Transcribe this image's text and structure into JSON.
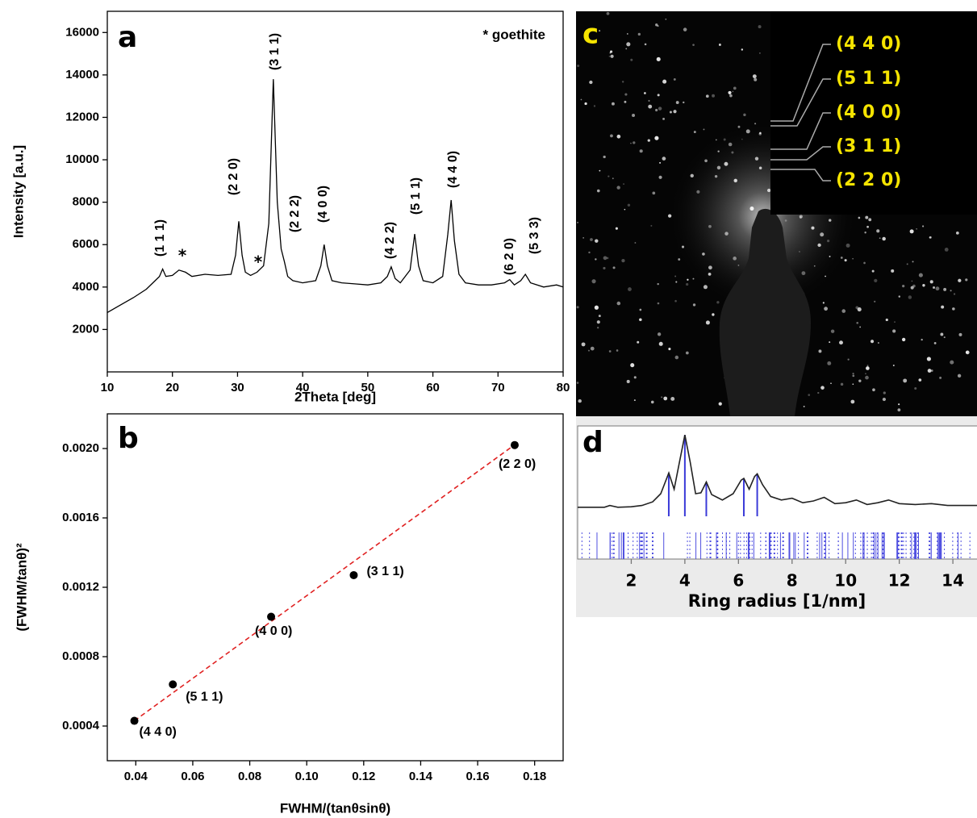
{
  "chart_data": [
    {
      "type": "line",
      "panel_label": "a",
      "x_label": "2Theta [deg]",
      "y_label": "Intensity [a.u.]",
      "xlim": [
        10,
        80
      ],
      "xticks": [
        10,
        20,
        30,
        40,
        50,
        60,
        70,
        80
      ],
      "ylim": [
        0,
        17000
      ],
      "yticks": [
        2000,
        4000,
        6000,
        8000,
        10000,
        12000,
        14000,
        16000
      ],
      "color": "#000000",
      "x": [
        10,
        12,
        14,
        16,
        17,
        18,
        18.5,
        19,
        20,
        21,
        22,
        23,
        25,
        27,
        29,
        29.7,
        30.2,
        30.7,
        31.2,
        32,
        33,
        34,
        34.8,
        35.5,
        36.1,
        36.7,
        37.2,
        37.7,
        38.5,
        40,
        42,
        42.8,
        43.3,
        43.8,
        44.5,
        46,
        48,
        50,
        52,
        53,
        53.6,
        54.2,
        55,
        56.5,
        57.2,
        57.8,
        58.5,
        60,
        61.5,
        62.3,
        62.8,
        63.3,
        64,
        65,
        67,
        69,
        71,
        71.8,
        72.5,
        73.5,
        74.2,
        75,
        77,
        79,
        80
      ],
      "values": [
        2800,
        3150,
        3500,
        3900,
        4200,
        4500,
        4850,
        4500,
        4550,
        4800,
        4700,
        4500,
        4600,
        4550,
        4600,
        5500,
        7100,
        5500,
        4700,
        4550,
        4700,
        5000,
        7000,
        13800,
        8000,
        5800,
        5200,
        4500,
        4300,
        4200,
        4300,
        5000,
        6000,
        5000,
        4300,
        4200,
        4150,
        4100,
        4200,
        4500,
        4950,
        4400,
        4200,
        4800,
        6500,
        5000,
        4300,
        4200,
        4500,
        6500,
        8100,
        6200,
        4600,
        4200,
        4100,
        4100,
        4200,
        4350,
        4100,
        4300,
        4600,
        4200,
        4000,
        4100,
        4000
      ],
      "peak_labels": [
        "(1 1 1)",
        "(2 2 0)",
        "(3 1 1)",
        "(2 2 2)",
        "(4 0 0)",
        "(4 2 2)",
        "(5 1 1)",
        "(4 4 0)",
        "(6 2 0)",
        "(5 3 3)"
      ],
      "impurity_marks": [
        "*",
        "*"
      ],
      "note": "* goethite"
    },
    {
      "type": "scatter",
      "panel_label": "b",
      "x_label": "FWHM/(tanθsinθ)",
      "y_label": "(FWHM/tanθ)²",
      "xlim": [
        0.03,
        0.19
      ],
      "xticks": [
        0.04,
        0.06,
        0.08,
        {
          "value": 0.1,
          "label": "0.10"
        },
        0.12,
        0.14,
        0.16,
        0.18
      ],
      "ylim": [
        0.0002,
        0.0022
      ],
      "yticks": [
        0.0004,
        0.0008,
        0.0012,
        0.0016,
        {
          "value": 0.002,
          "label": "0.0020"
        }
      ],
      "color": "#000000",
      "x": [
        0.0395,
        0.053,
        0.0875,
        0.1165,
        0.173
      ],
      "values": [
        0.00043,
        0.00064,
        0.00103,
        0.00127,
        0.00202
      ],
      "point_labels": [
        "(4 4 0)",
        "(5 1 1)",
        "(4 0 0)",
        "(3 1 1)",
        "(2 2 0)"
      ],
      "fit": {
        "x": [
          0.0395,
          0.172
        ],
        "values": [
          0.00043,
          0.00201
        ],
        "color": "#e02020"
      }
    },
    {
      "type": "line",
      "panel_label": "d",
      "x_label": "Ring radius [1/nm]",
      "xlim": [
        0,
        14.9
      ],
      "xticks": [
        2,
        4,
        6,
        8,
        10,
        12,
        14
      ],
      "ylim": [
        0,
        100
      ],
      "color": "#222222",
      "x": [
        0,
        0.5,
        1,
        1.2,
        1.5,
        2,
        2.4,
        2.8,
        3.1,
        3.4,
        3.6,
        3.8,
        4.0,
        4.2,
        4.4,
        4.6,
        4.8,
        5.0,
        5.4,
        5.8,
        6.1,
        6.2,
        6.4,
        6.6,
        6.7,
        6.9,
        7.2,
        7.6,
        8.0,
        8.4,
        8.8,
        9.2,
        9.6,
        10.0,
        10.4,
        10.8,
        11.2,
        11.6,
        12.0,
        12.6,
        13.2,
        13.8,
        14.4,
        14.9
      ],
      "values": [
        10,
        10,
        10,
        12,
        10,
        10.5,
        12,
        16,
        25,
        48,
        30,
        60,
        90,
        60,
        25,
        26,
        38,
        24,
        18,
        25,
        40,
        42,
        30,
        44,
        47,
        35,
        22,
        18,
        20,
        15,
        17,
        21,
        14,
        15,
        18,
        13,
        15,
        18,
        14,
        13,
        14,
        12,
        12,
        12
      ],
      "markers": [
        3.4,
        4.0,
        4.8,
        6.2,
        6.7
      ],
      "marker_color": "#3a3ad8"
    }
  ],
  "image_c": {
    "panel_label": "c",
    "ring_labels": [
      "(4 4 0)",
      "(5 1 1)",
      "(4 0 0)",
      "(3 1 1)",
      "(2 2 0)"
    ]
  }
}
